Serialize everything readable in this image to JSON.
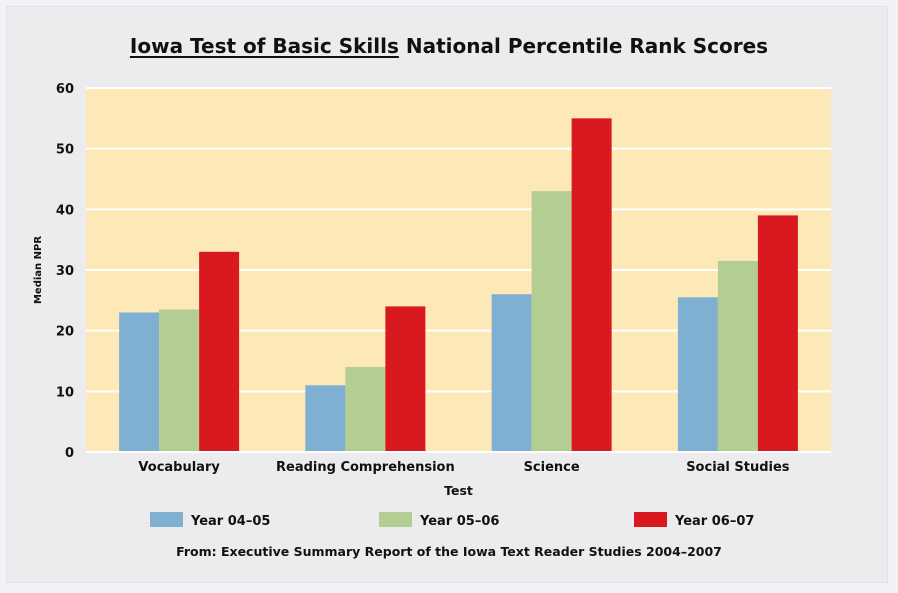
{
  "chart_data": {
    "type": "bar",
    "title_part1": "Iowa Test of Basic Skills",
    "title_part2": " National Percentile Rank Scores",
    "xlabel": "Test",
    "ylabel": "Median NPR",
    "ylim": [
      0,
      60
    ],
    "yticks": [
      0,
      10,
      20,
      30,
      40,
      50,
      60
    ],
    "grid": true,
    "legend_position": "bottom",
    "plot_background": "#fde9b8",
    "categories": [
      "Vocabulary",
      "Reading Comprehension",
      "Science",
      "Social Studies"
    ],
    "series": [
      {
        "name": "Year 04–05",
        "color": "#7fafd1",
        "values": [
          23,
          11,
          26,
          25.5
        ]
      },
      {
        "name": "Year 05–06",
        "color": "#b3cd93",
        "values": [
          23.5,
          14,
          43,
          31.5
        ]
      },
      {
        "name": "Year 06–07",
        "color": "#d81920",
        "values": [
          33,
          24,
          55,
          39
        ]
      }
    ],
    "source": "From: Executive Summary Report of the Iowa Text Reader Studies 2004–2007"
  }
}
